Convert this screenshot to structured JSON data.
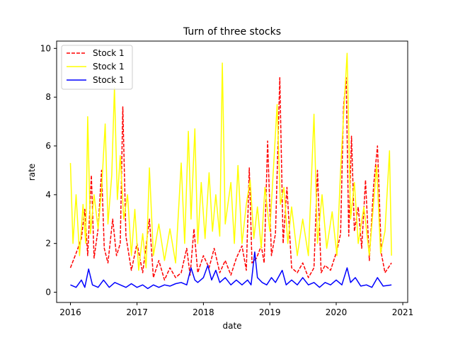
{
  "chart_data": {
    "type": "line",
    "title": "Turn of three stocks",
    "xlabel": "date",
    "ylabel": "rate",
    "x_range": [
      "2016-01-01",
      "2020-10-31"
    ],
    "xlim": [
      "2015-10-17",
      "2021-01-28"
    ],
    "ylim": [
      -0.42,
      10.3
    ],
    "x_ticks": [
      "2016",
      "2017",
      "2018",
      "2019",
      "2020",
      "2021"
    ],
    "y_ticks": [
      0,
      2,
      4,
      6,
      8,
      10
    ],
    "grid": false,
    "legend": {
      "position": "top-left"
    },
    "series": [
      {
        "name": "Stock 1",
        "color": "#ff0000",
        "style": "dashed",
        "points": [
          [
            "2016-01-01",
            1.0
          ],
          [
            "2016-02-01",
            1.6
          ],
          [
            "2016-03-01",
            2.2
          ],
          [
            "2016-03-20",
            3.4
          ],
          [
            "2016-04-05",
            1.5
          ],
          [
            "2016-04-25",
            4.8
          ],
          [
            "2016-05-10",
            1.4
          ],
          [
            "2016-06-01",
            2.6
          ],
          [
            "2016-06-20",
            5.0
          ],
          [
            "2016-07-05",
            1.8
          ],
          [
            "2016-07-25",
            1.2
          ],
          [
            "2016-08-20",
            3.0
          ],
          [
            "2016-09-10",
            1.5
          ],
          [
            "2016-10-01",
            2.0
          ],
          [
            "2016-10-15",
            7.6
          ],
          [
            "2016-11-01",
            2.3
          ],
          [
            "2016-12-01",
            0.9
          ],
          [
            "2017-01-01",
            2.0
          ],
          [
            "2017-02-01",
            0.8
          ],
          [
            "2017-03-10",
            3.0
          ],
          [
            "2017-04-01",
            0.6
          ],
          [
            "2017-05-01",
            1.3
          ],
          [
            "2017-06-01",
            0.5
          ],
          [
            "2017-07-01",
            1.0
          ],
          [
            "2017-08-01",
            0.6
          ],
          [
            "2017-09-01",
            0.8
          ],
          [
            "2017-10-01",
            1.8
          ],
          [
            "2017-10-20",
            0.7
          ],
          [
            "2017-11-10",
            2.6
          ],
          [
            "2017-12-01",
            0.8
          ],
          [
            "2018-01-01",
            1.5
          ],
          [
            "2018-02-01",
            1.0
          ],
          [
            "2018-03-01",
            1.8
          ],
          [
            "2018-04-01",
            0.8
          ],
          [
            "2018-05-01",
            1.3
          ],
          [
            "2018-06-01",
            0.7
          ],
          [
            "2018-07-01",
            1.4
          ],
          [
            "2018-08-01",
            1.9
          ],
          [
            "2018-08-25",
            0.9
          ],
          [
            "2018-09-10",
            5.1
          ],
          [
            "2018-09-25",
            1.2
          ],
          [
            "2018-10-20",
            1.4
          ],
          [
            "2018-11-15",
            1.9
          ],
          [
            "2018-12-01",
            1.2
          ],
          [
            "2018-12-20",
            6.2
          ],
          [
            "2019-01-10",
            1.5
          ],
          [
            "2019-02-01",
            2.4
          ],
          [
            "2019-02-25",
            8.8
          ],
          [
            "2019-03-15",
            2.0
          ],
          [
            "2019-04-05",
            4.3
          ],
          [
            "2019-05-01",
            1.0
          ],
          [
            "2019-06-01",
            0.8
          ],
          [
            "2019-07-01",
            1.2
          ],
          [
            "2019-08-01",
            0.6
          ],
          [
            "2019-09-01",
            1.0
          ],
          [
            "2019-09-20",
            5.0
          ],
          [
            "2019-10-10",
            0.8
          ],
          [
            "2019-11-01",
            1.1
          ],
          [
            "2019-12-01",
            0.9
          ],
          [
            "2020-01-05",
            1.7
          ],
          [
            "2020-01-25",
            2.4
          ],
          [
            "2020-02-10",
            7.6
          ],
          [
            "2020-02-25",
            8.8
          ],
          [
            "2020-03-10",
            2.3
          ],
          [
            "2020-03-25",
            6.4
          ],
          [
            "2020-04-10",
            2.5
          ],
          [
            "2020-05-01",
            3.5
          ],
          [
            "2020-05-20",
            1.8
          ],
          [
            "2020-06-10",
            4.6
          ],
          [
            "2020-07-01",
            1.3
          ],
          [
            "2020-07-25",
            4.4
          ],
          [
            "2020-08-15",
            6.0
          ],
          [
            "2020-09-05",
            1.6
          ],
          [
            "2020-09-25",
            0.8
          ],
          [
            "2020-10-31",
            1.2
          ]
        ]
      },
      {
        "name": "Stock 1",
        "color": "#ffff00",
        "style": "solid",
        "points": [
          [
            "2016-01-01",
            5.3
          ],
          [
            "2016-01-15",
            2.0
          ],
          [
            "2016-02-01",
            4.0
          ],
          [
            "2016-02-20",
            1.5
          ],
          [
            "2016-03-10",
            3.6
          ],
          [
            "2016-03-25",
            2.0
          ],
          [
            "2016-04-05",
            7.2
          ],
          [
            "2016-04-20",
            2.4
          ],
          [
            "2016-05-10",
            4.0
          ],
          [
            "2016-06-01",
            2.6
          ],
          [
            "2016-06-20",
            4.2
          ],
          [
            "2016-07-10",
            6.9
          ],
          [
            "2016-07-25",
            2.8
          ],
          [
            "2016-08-15",
            4.8
          ],
          [
            "2016-08-30",
            8.4
          ],
          [
            "2016-09-15",
            3.8
          ],
          [
            "2016-10-01",
            5.6
          ],
          [
            "2016-10-20",
            3.0
          ],
          [
            "2016-11-10",
            4.0
          ],
          [
            "2016-12-01",
            1.5
          ],
          [
            "2016-12-20",
            3.4
          ],
          [
            "2017-01-10",
            0.9
          ],
          [
            "2017-02-01",
            2.4
          ],
          [
            "2017-02-20",
            1.0
          ],
          [
            "2017-03-10",
            5.1
          ],
          [
            "2017-04-01",
            1.5
          ],
          [
            "2017-05-01",
            2.8
          ],
          [
            "2017-06-01",
            1.3
          ],
          [
            "2017-07-01",
            2.6
          ],
          [
            "2017-08-01",
            1.2
          ],
          [
            "2017-09-01",
            5.3
          ],
          [
            "2017-09-20",
            2.0
          ],
          [
            "2017-10-10",
            6.6
          ],
          [
            "2017-10-25",
            3.0
          ],
          [
            "2017-11-15",
            6.7
          ],
          [
            "2017-12-01",
            2.0
          ],
          [
            "2017-12-20",
            4.5
          ],
          [
            "2018-01-10",
            2.2
          ],
          [
            "2018-02-01",
            4.9
          ],
          [
            "2018-02-20",
            2.5
          ],
          [
            "2018-03-10",
            4.0
          ],
          [
            "2018-04-01",
            2.3
          ],
          [
            "2018-04-15",
            9.4
          ],
          [
            "2018-05-01",
            2.8
          ],
          [
            "2018-06-01",
            4.5
          ],
          [
            "2018-06-20",
            2.0
          ],
          [
            "2018-07-10",
            5.2
          ],
          [
            "2018-08-01",
            2.0
          ],
          [
            "2018-08-25",
            3.6
          ],
          [
            "2018-09-15",
            4.6
          ],
          [
            "2018-10-05",
            2.2
          ],
          [
            "2018-10-25",
            3.5
          ],
          [
            "2018-11-15",
            1.8
          ],
          [
            "2018-12-05",
            4.3
          ],
          [
            "2019-01-01",
            2.5
          ],
          [
            "2019-01-25",
            5.6
          ],
          [
            "2019-02-10",
            7.7
          ],
          [
            "2019-02-28",
            3.6
          ],
          [
            "2019-03-20",
            4.3
          ],
          [
            "2019-04-10",
            2.0
          ],
          [
            "2019-05-01",
            3.5
          ],
          [
            "2019-06-01",
            1.5
          ],
          [
            "2019-07-01",
            3.0
          ],
          [
            "2019-08-01",
            1.5
          ],
          [
            "2019-09-01",
            7.3
          ],
          [
            "2019-09-20",
            2.0
          ],
          [
            "2019-10-15",
            4.0
          ],
          [
            "2019-11-10",
            1.8
          ],
          [
            "2019-12-10",
            3.3
          ],
          [
            "2020-01-05",
            1.5
          ],
          [
            "2020-01-25",
            5.0
          ],
          [
            "2020-02-10",
            7.2
          ],
          [
            "2020-03-01",
            9.8
          ],
          [
            "2020-03-20",
            3.0
          ],
          [
            "2020-04-10",
            4.5
          ],
          [
            "2020-05-01",
            2.0
          ],
          [
            "2020-06-01",
            3.5
          ],
          [
            "2020-07-01",
            1.5
          ],
          [
            "2020-08-10",
            5.2
          ],
          [
            "2020-09-01",
            1.6
          ],
          [
            "2020-09-25",
            2.5
          ],
          [
            "2020-10-20",
            5.8
          ],
          [
            "2020-10-31",
            1.5
          ]
        ]
      },
      {
        "name": "Stock 1",
        "color": "#0000ff",
        "style": "solid",
        "points": [
          [
            "2016-01-01",
            0.3
          ],
          [
            "2016-02-01",
            0.2
          ],
          [
            "2016-03-01",
            0.5
          ],
          [
            "2016-03-20",
            0.2
          ],
          [
            "2016-04-10",
            0.95
          ],
          [
            "2016-05-01",
            0.3
          ],
          [
            "2016-06-01",
            0.2
          ],
          [
            "2016-07-01",
            0.5
          ],
          [
            "2016-08-01",
            0.2
          ],
          [
            "2016-09-01",
            0.4
          ],
          [
            "2016-10-01",
            0.3
          ],
          [
            "2016-11-01",
            0.2
          ],
          [
            "2016-12-01",
            0.35
          ],
          [
            "2017-01-01",
            0.2
          ],
          [
            "2017-02-01",
            0.3
          ],
          [
            "2017-03-01",
            0.15
          ],
          [
            "2017-04-01",
            0.3
          ],
          [
            "2017-05-01",
            0.2
          ],
          [
            "2017-06-01",
            0.3
          ],
          [
            "2017-07-01",
            0.25
          ],
          [
            "2017-08-01",
            0.35
          ],
          [
            "2017-09-01",
            0.4
          ],
          [
            "2017-10-01",
            0.3
          ],
          [
            "2017-10-25",
            1.0
          ],
          [
            "2017-11-15",
            0.5
          ],
          [
            "2017-12-01",
            0.4
          ],
          [
            "2018-01-01",
            0.6
          ],
          [
            "2018-01-25",
            1.1
          ],
          [
            "2018-02-15",
            0.5
          ],
          [
            "2018-03-10",
            0.9
          ],
          [
            "2018-04-01",
            0.4
          ],
          [
            "2018-05-01",
            0.6
          ],
          [
            "2018-06-01",
            0.3
          ],
          [
            "2018-07-01",
            0.5
          ],
          [
            "2018-08-01",
            0.3
          ],
          [
            "2018-09-01",
            0.5
          ],
          [
            "2018-09-20",
            0.3
          ],
          [
            "2018-10-10",
            1.65
          ],
          [
            "2018-10-25",
            0.6
          ],
          [
            "2018-11-20",
            0.4
          ],
          [
            "2018-12-15",
            0.3
          ],
          [
            "2019-01-10",
            0.6
          ],
          [
            "2019-02-01",
            0.4
          ],
          [
            "2019-03-10",
            0.9
          ],
          [
            "2019-04-01",
            0.3
          ],
          [
            "2019-05-01",
            0.5
          ],
          [
            "2019-06-01",
            0.3
          ],
          [
            "2019-07-01",
            0.6
          ],
          [
            "2019-08-01",
            0.3
          ],
          [
            "2019-09-01",
            0.4
          ],
          [
            "2019-10-01",
            0.2
          ],
          [
            "2019-11-01",
            0.4
          ],
          [
            "2019-12-01",
            0.3
          ],
          [
            "2020-01-01",
            0.5
          ],
          [
            "2020-02-01",
            0.3
          ],
          [
            "2020-03-01",
            1.0
          ],
          [
            "2020-03-20",
            0.4
          ],
          [
            "2020-04-15",
            0.6
          ],
          [
            "2020-05-15",
            0.25
          ],
          [
            "2020-06-15",
            0.3
          ],
          [
            "2020-07-15",
            0.2
          ],
          [
            "2020-08-15",
            0.6
          ],
          [
            "2020-09-15",
            0.25
          ],
          [
            "2020-10-31",
            0.3
          ]
        ]
      }
    ]
  }
}
